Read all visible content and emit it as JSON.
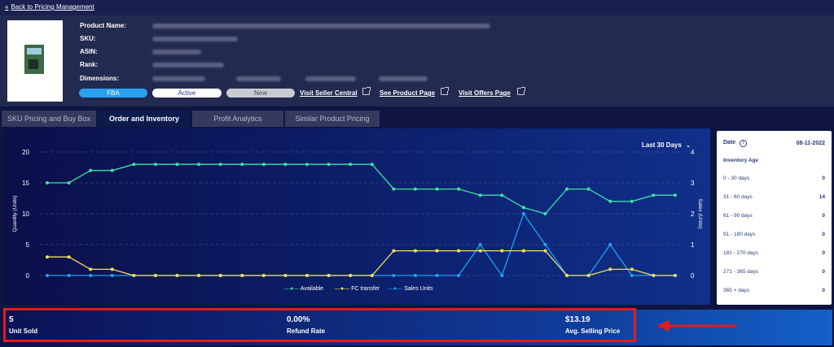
{
  "nav": {
    "back_label": "Back to Pricing Management"
  },
  "product": {
    "labels": {
      "name": "Product Name:",
      "sku": "SKU:",
      "asin": "ASIN:",
      "rank": "Rank:",
      "dimensions": "Dimensions:"
    },
    "badges": {
      "fba": "FBA",
      "status": "Active",
      "condition": "New"
    },
    "links": {
      "seller_central": "Visit Seller Central",
      "product_page": "See Product Page",
      "offers_page": "Visit Offers Page"
    }
  },
  "tabs": [
    "SKU Pricing and Buy Box",
    "Order and Inventory",
    "Profit Analytics",
    "Similar Product Pricing"
  ],
  "active_tab": 1,
  "period_select": {
    "value": "Last 30 Days"
  },
  "chart_data": {
    "type": "line",
    "y_left": {
      "label": "Quantity (Units)",
      "ticks": [
        "0",
        "5",
        "10",
        "15",
        "20"
      ],
      "lim": [
        0,
        20
      ]
    },
    "y_right": {
      "label": "Sales (Units)",
      "ticks": [
        "0",
        "1",
        "2",
        "3",
        "4"
      ],
      "lim": [
        0,
        4
      ]
    },
    "grid": "horizontal dashed",
    "legend_position": "bottom",
    "series": [
      {
        "name": "Available",
        "axis": "left",
        "color": "#3ee0a4",
        "values": [
          15,
          15,
          17,
          17,
          18,
          18,
          18,
          18,
          18,
          18,
          18,
          18,
          18,
          18,
          18,
          18,
          14,
          14,
          14,
          14,
          13,
          13,
          11,
          10,
          14,
          14,
          12,
          12,
          13,
          13
        ]
      },
      {
        "name": "FC transfer",
        "axis": "left",
        "color": "#f5e05a",
        "values": [
          3,
          3,
          1,
          1,
          0,
          0,
          0,
          0,
          0,
          0,
          0,
          0,
          0,
          0,
          0,
          0,
          4,
          4,
          4,
          4,
          4,
          4,
          4,
          4,
          0,
          0,
          1,
          1,
          0,
          0
        ]
      },
      {
        "name": "Sales Units",
        "axis": "right",
        "color": "#1fa2f5",
        "values": [
          0,
          0,
          0,
          0,
          0,
          0,
          0,
          0,
          0,
          0,
          0,
          0,
          0,
          0,
          0,
          0,
          0,
          0,
          0,
          0,
          1,
          0,
          2,
          1,
          0,
          0,
          1,
          0,
          0,
          0
        ]
      }
    ]
  },
  "inventory_age": {
    "date_label": "Date",
    "date_value": "08-11-2022",
    "title": "Inventory Age",
    "rows": [
      {
        "range": "0 - 30 days",
        "value": "0"
      },
      {
        "range": "31 - 60 days",
        "value": "14"
      },
      {
        "range": "61 - 90 days",
        "value": "0"
      },
      {
        "range": "91 - 180 days",
        "value": "0"
      },
      {
        "range": "181 - 270 days",
        "value": "0"
      },
      {
        "range": "271 - 365 days",
        "value": "0"
      },
      {
        "range": "365 + days",
        "value": "0"
      }
    ]
  },
  "stats": {
    "units_sold": {
      "value": "5",
      "label": "Unit Sold"
    },
    "refund_rate": {
      "value": "0.00%",
      "label": "Refund Rate"
    },
    "avg_price": {
      "value": "$13.19",
      "label": "Avg. Selling Price"
    }
  },
  "colors": {
    "highlight": "#e31b1b",
    "accent": "#2aa0f0"
  }
}
